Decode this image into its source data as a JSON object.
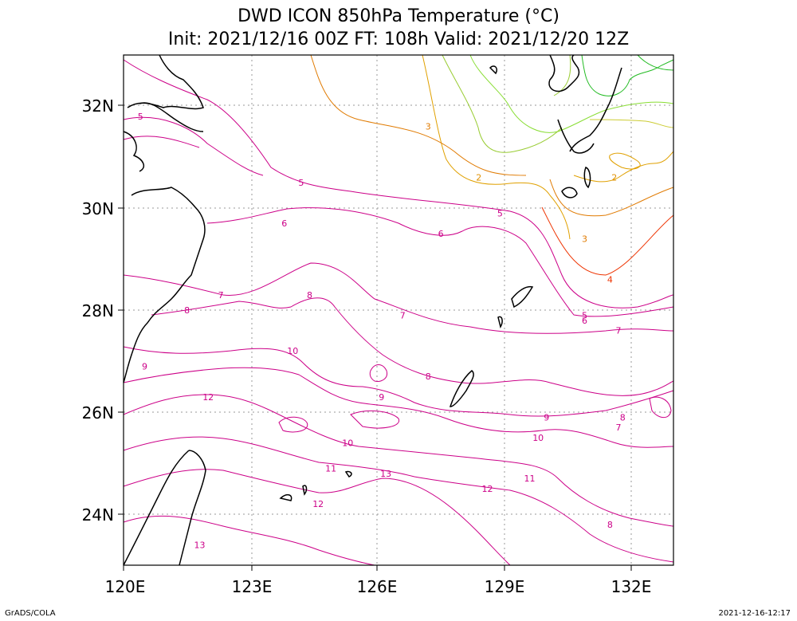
{
  "title": {
    "line1": "DWD ICON 850hPa Temperature (°C)",
    "line2": "Init: 2021/12/16 00Z  FT: 108h  Valid: 2021/12/20 12Z"
  },
  "axes": {
    "x_ticks": [
      "120E",
      "123E",
      "126E",
      "129E",
      "132E"
    ],
    "y_ticks": [
      "32N",
      "30N",
      "28N",
      "26N",
      "24N"
    ],
    "lon_range": [
      120,
      133
    ],
    "lat_range": [
      23,
      33
    ]
  },
  "contour_labels": [
    {
      "text": "5",
      "lon": 120.4,
      "lat": 31.8,
      "color": "#cc0088"
    },
    {
      "text": "5",
      "lon": 124.2,
      "lat": 30.5,
      "color": "#cc0088"
    },
    {
      "text": "5",
      "lon": 128.9,
      "lat": 29.9,
      "color": "#cc0088"
    },
    {
      "text": "3",
      "lon": 127.2,
      "lat": 31.6,
      "color": "#e07a00"
    },
    {
      "text": "2",
      "lon": 128.4,
      "lat": 30.6,
      "color": "#e09000"
    },
    {
      "text": "2",
      "lon": 131.6,
      "lat": 30.6,
      "color": "#e09000"
    },
    {
      "text": "3",
      "lon": 130.9,
      "lat": 29.4,
      "color": "#e07a00"
    },
    {
      "text": "4",
      "lon": 131.5,
      "lat": 28.6,
      "color": "#ee3300"
    },
    {
      "text": "5",
      "lon": 130.9,
      "lat": 27.9,
      "color": "#cc0088"
    },
    {
      "text": "6",
      "lon": 130.9,
      "lat": 27.8,
      "color": "#cc0088"
    },
    {
      "text": "6",
      "lon": 123.8,
      "lat": 29.7,
      "color": "#cc0088"
    },
    {
      "text": "6",
      "lon": 127.5,
      "lat": 29.5,
      "color": "#cc0088"
    },
    {
      "text": "7",
      "lon": 122.3,
      "lat": 28.3,
      "color": "#cc0088"
    },
    {
      "text": "7",
      "lon": 126.6,
      "lat": 27.9,
      "color": "#cc0088"
    },
    {
      "text": "7",
      "lon": 131.7,
      "lat": 27.6,
      "color": "#cc0088"
    },
    {
      "text": "7",
      "lon": 131.7,
      "lat": 25.7,
      "color": "#cc0088"
    },
    {
      "text": "8",
      "lon": 121.5,
      "lat": 28.0,
      "color": "#cc0088"
    },
    {
      "text": "8",
      "lon": 124.4,
      "lat": 28.3,
      "color": "#cc0088"
    },
    {
      "text": "8",
      "lon": 127.2,
      "lat": 26.7,
      "color": "#cc0088"
    },
    {
      "text": "8",
      "lon": 131.8,
      "lat": 25.9,
      "color": "#cc0088"
    },
    {
      "text": "8",
      "lon": 131.5,
      "lat": 23.8,
      "color": "#cc0088"
    },
    {
      "text": "9",
      "lon": 120.5,
      "lat": 26.9,
      "color": "#cc0088"
    },
    {
      "text": "9",
      "lon": 126.1,
      "lat": 26.3,
      "color": "#cc0088"
    },
    {
      "text": "9",
      "lon": 130.0,
      "lat": 25.9,
      "color": "#cc0088"
    },
    {
      "text": "10",
      "lon": 124.0,
      "lat": 27.2,
      "color": "#cc0088"
    },
    {
      "text": "10",
      "lon": 125.3,
      "lat": 25.4,
      "color": "#cc0088"
    },
    {
      "text": "10",
      "lon": 129.8,
      "lat": 25.5,
      "color": "#cc0088"
    },
    {
      "text": "11",
      "lon": 124.9,
      "lat": 24.9,
      "color": "#cc0088"
    },
    {
      "text": "11",
      "lon": 129.6,
      "lat": 24.7,
      "color": "#cc0088"
    },
    {
      "text": "12",
      "lon": 122.0,
      "lat": 26.3,
      "color": "#cc0088"
    },
    {
      "text": "12",
      "lon": 124.6,
      "lat": 24.2,
      "color": "#cc0088"
    },
    {
      "text": "12",
      "lon": 128.6,
      "lat": 24.5,
      "color": "#cc0088"
    },
    {
      "text": "13",
      "lon": 126.2,
      "lat": 24.8,
      "color": "#cc0088"
    },
    {
      "text": "13",
      "lon": 121.8,
      "lat": 23.4,
      "color": "#cc0088"
    }
  ],
  "footer": {
    "left": "GrADS/COLA",
    "right": "2021-12-16-12:17"
  }
}
